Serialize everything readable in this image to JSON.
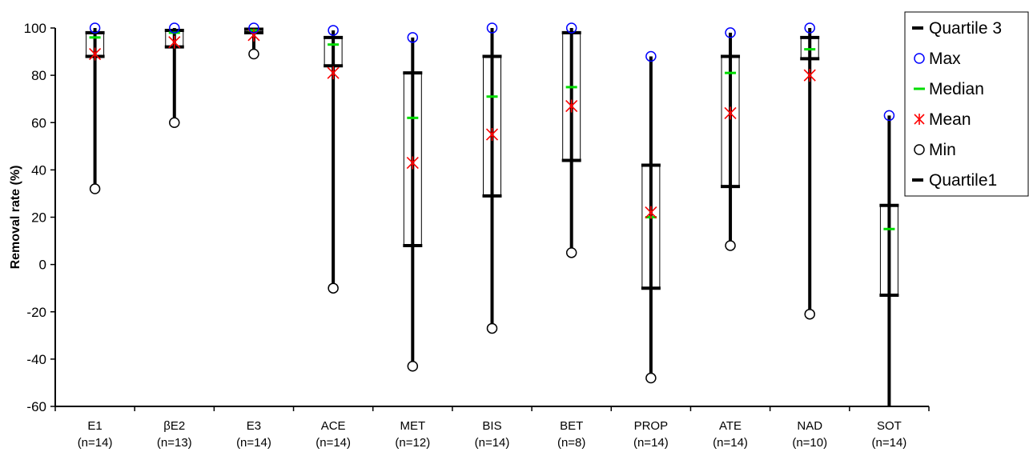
{
  "chart_data": {
    "type": "boxplot",
    "ylabel": "Removal rate (%)",
    "xlabel": "",
    "ylim": [
      -60,
      100
    ],
    "yticks": [
      -60,
      -40,
      -20,
      0,
      20,
      40,
      60,
      80,
      100
    ],
    "grid": false,
    "legend_position": "top-right",
    "categories": [
      {
        "name": "E1",
        "n": "(n=14)",
        "min": 32,
        "q1": 88,
        "median": 96,
        "mean": 89,
        "q3": 98,
        "max": 100
      },
      {
        "name": "βE2",
        "n": "(n=13)",
        "min": 60,
        "q1": 92,
        "median": 98,
        "mean": 94,
        "q3": 99,
        "max": 100
      },
      {
        "name": "E3",
        "n": "(n=14)",
        "min": 89,
        "q1": 98,
        "median": 99,
        "mean": 97,
        "q3": 99.5,
        "max": 100
      },
      {
        "name": "ACE",
        "n": "(n=14)",
        "min": -10,
        "q1": 84,
        "median": 93,
        "mean": 81,
        "q3": 96,
        "max": 99
      },
      {
        "name": "MET",
        "n": "(n=12)",
        "min": -43,
        "q1": 8,
        "median": 62,
        "mean": 43,
        "q3": 81,
        "max": 96
      },
      {
        "name": "BIS",
        "n": "(n=14)",
        "min": -27,
        "q1": 29,
        "median": 71,
        "mean": 55,
        "q3": 88,
        "max": 100
      },
      {
        "name": "BET",
        "n": "(n=8)",
        "min": 5,
        "q1": 44,
        "median": 75,
        "mean": 67,
        "q3": 98,
        "max": 100
      },
      {
        "name": "PROP",
        "n": "(n=14)",
        "min": -48,
        "q1": -10,
        "median": 20,
        "mean": 22,
        "q3": 42,
        "max": 88
      },
      {
        "name": "ATE",
        "n": "(n=14)",
        "min": 8,
        "q1": 33,
        "median": 81,
        "mean": 64,
        "q3": 88,
        "max": 98
      },
      {
        "name": "NAD",
        "n": "(n=10)",
        "min": -21,
        "q1": 87,
        "median": 91,
        "mean": 80,
        "q3": 96,
        "max": 100
      },
      {
        "name": "SOT",
        "n": "(n=14)",
        "min": -60,
        "q1": -13,
        "median": 15,
        "mean": null,
        "q3": 25,
        "max": 63
      }
    ],
    "legend": [
      {
        "key": "q3",
        "label": "Quartile 3"
      },
      {
        "key": "max",
        "label": "Max"
      },
      {
        "key": "median",
        "label": "Median"
      },
      {
        "key": "mean",
        "label": "Mean"
      },
      {
        "key": "min",
        "label": "Min"
      },
      {
        "key": "q1",
        "label": "Quartile1"
      }
    ],
    "colors": {
      "quartile": "#000000",
      "max": "#0000ff",
      "median": "#00dd00",
      "mean": "#ff0000",
      "min": "#000000",
      "whisker": "#000000"
    }
  }
}
